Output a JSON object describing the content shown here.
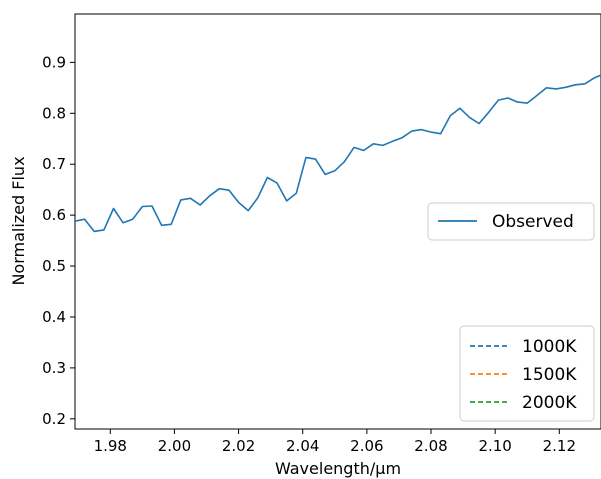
{
  "chart_data": {
    "type": "line",
    "xlabel": "Wavelength/µm",
    "ylabel": "Normalized Flux",
    "xlim": [
      1.969,
      2.133
    ],
    "ylim": [
      0.18,
      0.995
    ],
    "x_ticks": [
      "1.98",
      "2.00",
      "2.02",
      "2.04",
      "2.06",
      "2.08",
      "2.10",
      "2.12"
    ],
    "y_ticks": [
      "0.2",
      "0.3",
      "0.4",
      "0.5",
      "0.6",
      "0.7",
      "0.8",
      "0.9"
    ],
    "grid": false,
    "legends": [
      {
        "placement": "center-right",
        "entries": [
          "Observed"
        ]
      },
      {
        "placement": "bottom-right",
        "entries": [
          "1000K",
          "1500K",
          "2000K"
        ]
      }
    ],
    "series": [
      {
        "name": "Observed",
        "style": "solid",
        "color": "#1f77b4",
        "x": [
          1.969,
          1.972,
          1.975,
          1.978,
          1.981,
          1.984,
          1.987,
          1.99,
          1.993,
          1.996,
          1.999,
          2.002,
          2.005,
          2.008,
          2.011,
          2.014,
          2.017,
          2.02,
          2.023,
          2.026,
          2.029,
          2.032,
          2.035,
          2.038,
          2.041,
          2.044,
          2.047,
          2.05,
          2.053,
          2.056,
          2.059,
          2.062,
          2.065,
          2.068,
          2.071,
          2.074,
          2.077,
          2.08,
          2.083,
          2.086,
          2.089,
          2.092,
          2.095,
          2.098,
          2.101,
          2.104,
          2.107,
          2.11,
          2.113,
          2.116,
          2.119,
          2.122,
          2.125,
          2.128,
          2.131,
          2.133
        ],
        "y": [
          0.588,
          0.592,
          0.568,
          0.571,
          0.613,
          0.585,
          0.592,
          0.617,
          0.618,
          0.58,
          0.582,
          0.63,
          0.633,
          0.62,
          0.638,
          0.652,
          0.649,
          0.625,
          0.609,
          0.634,
          0.674,
          0.663,
          0.628,
          0.643,
          0.713,
          0.71,
          0.68,
          0.687,
          0.705,
          0.733,
          0.727,
          0.74,
          0.737,
          0.745,
          0.752,
          0.765,
          0.768,
          0.763,
          0.76,
          0.795,
          0.81,
          0.792,
          0.78,
          0.802,
          0.826,
          0.83,
          0.822,
          0.82,
          0.835,
          0.85,
          0.848,
          0.851,
          0.856,
          0.858,
          0.87,
          0.875
        ],
        "x_note": "observed series sampled evenly"
      }
    ]
  }
}
